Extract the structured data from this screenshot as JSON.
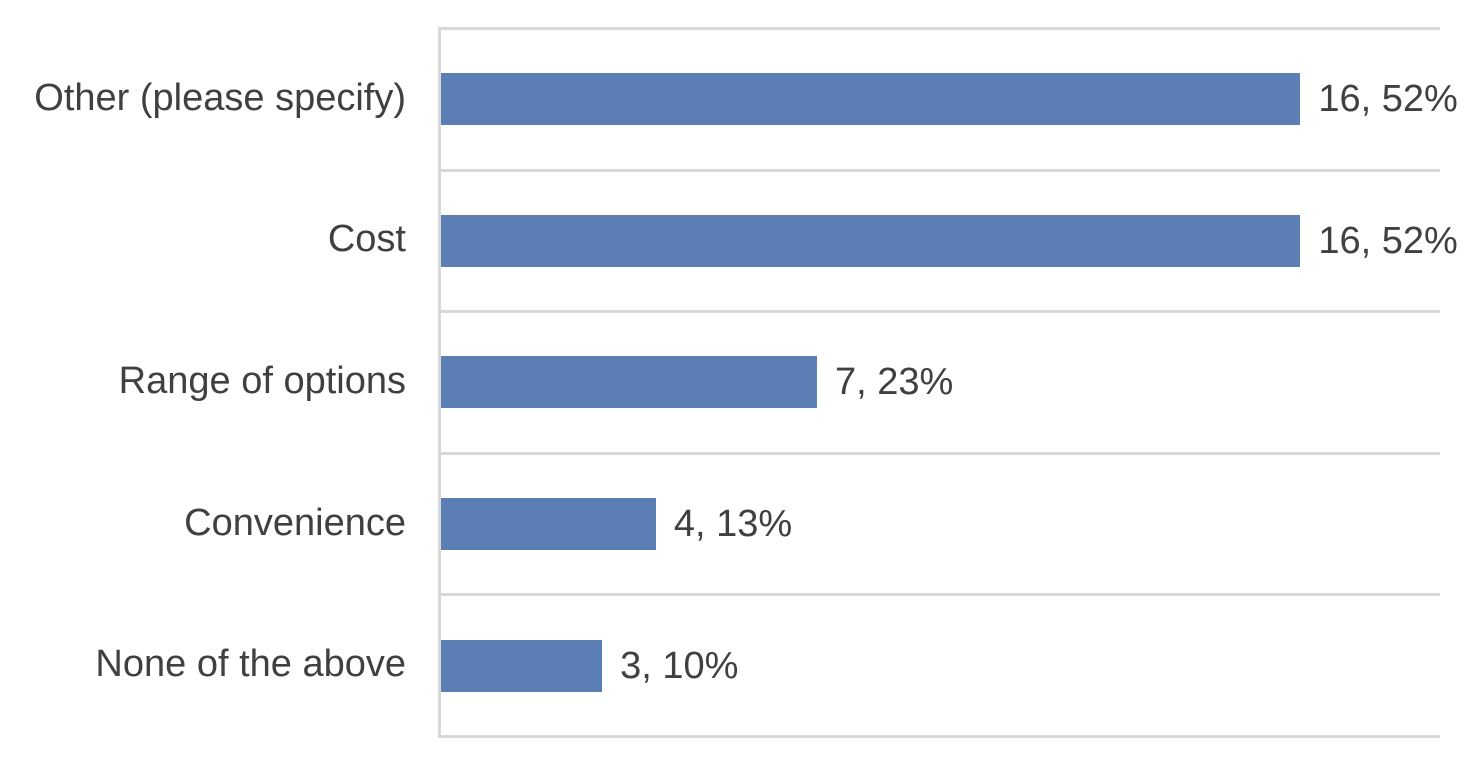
{
  "chart_data": {
    "type": "bar",
    "orientation": "horizontal",
    "title": "",
    "xlabel": "",
    "ylabel": "",
    "categories": [
      "Other (please specify)",
      "Cost",
      "Range of options",
      "Convenience",
      "None of the above"
    ],
    "values": [
      16,
      16,
      7,
      4,
      3
    ],
    "percents": [
      52,
      52,
      23,
      13,
      10
    ],
    "data_labels": [
      "16, 52%",
      "16, 52%",
      "7, 23%",
      "4, 13%",
      "3, 10%"
    ],
    "xlim": [
      0,
      18.6
    ],
    "grid": "row-boundary horizontal gridlines, left axis line, no vertical gridlines",
    "legend": "none",
    "colors": {
      "bar": "#5B7FB5",
      "gridline": "#D9D9D9",
      "text": "#404040",
      "background": "#FFFFFF"
    }
  }
}
